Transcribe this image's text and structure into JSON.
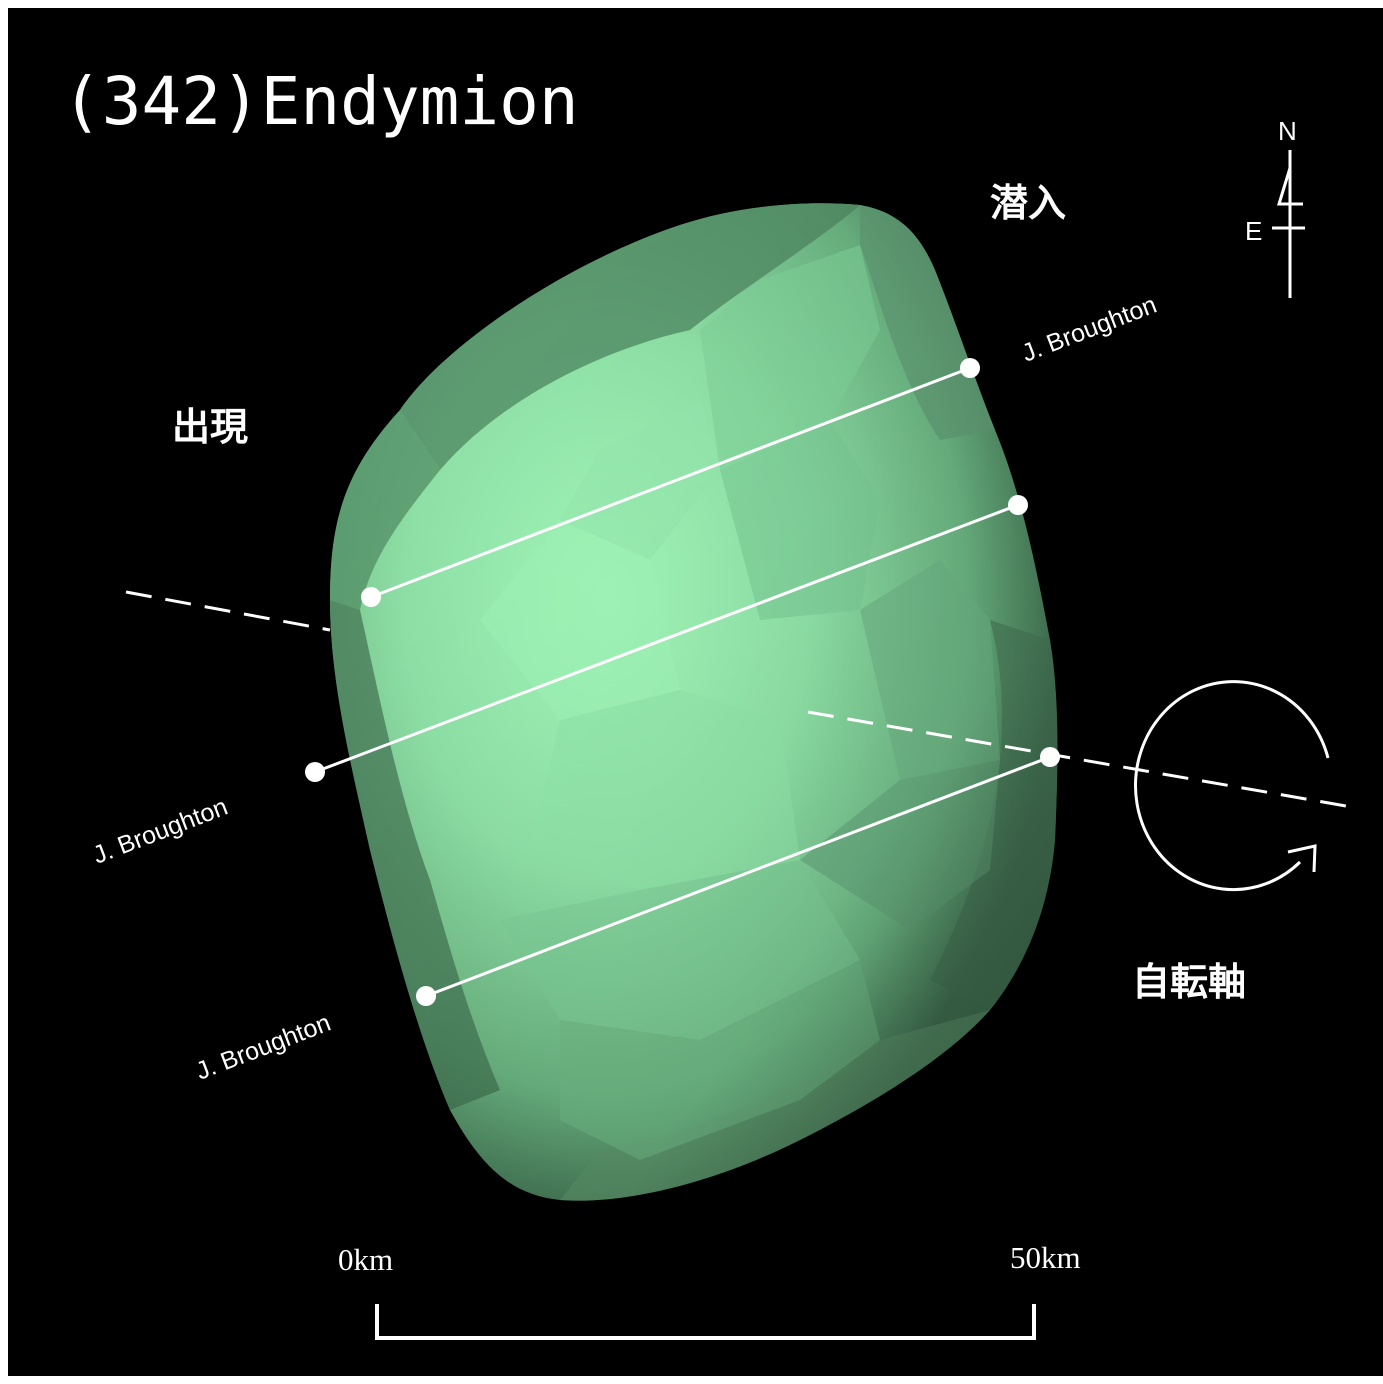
{
  "title": "(342)Endymion",
  "labels": {
    "disappearance": "潜入",
    "reappearance": "出現",
    "rotation_axis": "自転軸"
  },
  "compass": {
    "north": "N",
    "east": "E"
  },
  "chords": [
    {
      "observer": "J. Broughton"
    },
    {
      "observer": "J. Broughton"
    },
    {
      "observer": "J. Broughton"
    }
  ],
  "scale_bar": {
    "start_label": "0km",
    "end_label": "50km"
  },
  "colors": {
    "background": "#000000",
    "shape_light": "#a2f7b8",
    "shape_mid": "#78c48d",
    "shape_dark": "#3e6e4f",
    "lines": "#ffffff"
  }
}
